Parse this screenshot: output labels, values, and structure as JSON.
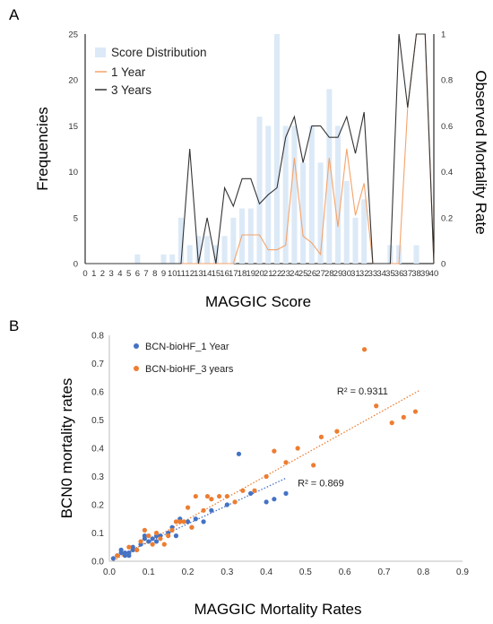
{
  "panels": {
    "a_label": "A",
    "b_label": "B"
  },
  "colors": {
    "bar": "#dce9f7",
    "one_year_line": "#f4a36a",
    "three_year_line": "#333333",
    "one_year_scatter": "#4472c4",
    "three_year_scatter": "#ed7d31"
  },
  "chart_data": [
    {
      "type": "bar+line",
      "xlabel": "MAGGIC Score",
      "ylabel": "Frequencies",
      "y2label": "Observed Mortality Rate",
      "ylim": [
        0,
        25
      ],
      "y2lim": [
        0,
        1
      ],
      "xlim": [
        0,
        40
      ],
      "x_ticks": [
        "0",
        "1",
        "2",
        "3",
        "4",
        "5",
        "6",
        "7",
        "8",
        "9",
        "10",
        "11",
        "12",
        "13",
        "14",
        "15",
        "16",
        "17",
        "18",
        "19",
        "20",
        "21",
        "22",
        "23",
        "24",
        "25",
        "26",
        "27",
        "28",
        "29",
        "30",
        "31",
        "32",
        "33",
        "34",
        "35",
        "36",
        "37",
        "38",
        "39",
        "40"
      ],
      "y_ticks": [
        "0",
        "5",
        "10",
        "15",
        "20",
        "25"
      ],
      "y2_ticks": [
        "0",
        "0.2",
        "0.4",
        "0.6",
        "0.8",
        "1"
      ],
      "legend": [
        "Score Distribution",
        "1 Year",
        "3 Years"
      ],
      "legend_position": "top-left",
      "frequencies": [
        0,
        0,
        0,
        0,
        0,
        0,
        1,
        0,
        0,
        1,
        1,
        5,
        2,
        3,
        3,
        2,
        3,
        5,
        6,
        6,
        16,
        15,
        25,
        15,
        15,
        11,
        15,
        11,
        19,
        15,
        9,
        5,
        7,
        0,
        0,
        2,
        2,
        0,
        2,
        0,
        0
      ],
      "mortality_1_year": [
        0,
        0,
        0,
        0,
        0,
        0,
        0,
        0,
        0,
        0,
        0,
        0,
        0,
        0,
        0,
        0,
        0,
        0,
        0.125,
        0.125,
        0.125,
        0.06,
        0.06,
        0.08,
        0.46,
        0.12,
        0.09,
        0.04,
        0.46,
        0.16,
        0.5,
        0.21,
        0.35,
        0,
        0,
        0,
        0,
        0.68,
        1,
        1,
        0
      ],
      "mortality_3_years": [
        0,
        0,
        0,
        0,
        0,
        0,
        0,
        0,
        0,
        0,
        0,
        0,
        0.5,
        0,
        0.2,
        0,
        0.33,
        0.25,
        0.37,
        0.37,
        0.26,
        0.3,
        0.33,
        0.55,
        0.64,
        0.44,
        0.6,
        0.6,
        0.55,
        0.55,
        0.64,
        0.48,
        0.66,
        0,
        0,
        0,
        1,
        0.68,
        1,
        1,
        0
      ]
    },
    {
      "type": "scatter",
      "xlabel": "MAGGIC Mortality Rates",
      "ylabel": "BCN0 mortality rates",
      "xlim": [
        0,
        0.9
      ],
      "ylim": [
        0,
        0.8
      ],
      "x_ticks": [
        "0.0",
        "0.1",
        "0.2",
        "0.3",
        "0.4",
        "0.5",
        "0.6",
        "0.7",
        "0.8",
        "0.9"
      ],
      "y_ticks": [
        "0.0",
        "0.1",
        "0.2",
        "0.3",
        "0.4",
        "0.5",
        "0.6",
        "0.7",
        "0.8"
      ],
      "legend_position": "top-left",
      "series": [
        {
          "name": "BCN-bioHF_1 Year",
          "trendline": {
            "slope": 0.647,
            "intercept": 0.003,
            "x_range": [
              0.01,
              0.45
            ]
          },
          "r2_label": "R² = 0.869",
          "points": [
            [
              0.01,
              0.01
            ],
            [
              0.02,
              0.02
            ],
            [
              0.03,
              0.03
            ],
            [
              0.03,
              0.04
            ],
            [
              0.04,
              0.02
            ],
            [
              0.04,
              0.03
            ],
            [
              0.05,
              0.03
            ],
            [
              0.05,
              0.02
            ],
            [
              0.06,
              0.04
            ],
            [
              0.06,
              0.05
            ],
            [
              0.07,
              0.04
            ],
            [
              0.08,
              0.06
            ],
            [
              0.09,
              0.08
            ],
            [
              0.09,
              0.09
            ],
            [
              0.1,
              0.07
            ],
            [
              0.11,
              0.08
            ],
            [
              0.12,
              0.09
            ],
            [
              0.12,
              0.07
            ],
            [
              0.13,
              0.09
            ],
            [
              0.15,
              0.1
            ],
            [
              0.16,
              0.12
            ],
            [
              0.17,
              0.09
            ],
            [
              0.18,
              0.15
            ],
            [
              0.2,
              0.14
            ],
            [
              0.21,
              0.12
            ],
            [
              0.22,
              0.15
            ],
            [
              0.24,
              0.14
            ],
            [
              0.26,
              0.18
            ],
            [
              0.3,
              0.2
            ],
            [
              0.33,
              0.38
            ],
            [
              0.36,
              0.24
            ],
            [
              0.4,
              0.21
            ],
            [
              0.42,
              0.22
            ],
            [
              0.45,
              0.24
            ]
          ]
        },
        {
          "name": "BCN-bioHF_3 years",
          "trendline": {
            "slope": 0.773,
            "intercept": -0.006,
            "x_range": [
              0.01,
              0.79
            ]
          },
          "r2_label": "R² = 0.9311",
          "points": [
            [
              0.02,
              0.02
            ],
            [
              0.05,
              0.05
            ],
            [
              0.07,
              0.04
            ],
            [
              0.08,
              0.07
            ],
            [
              0.09,
              0.11
            ],
            [
              0.1,
              0.09
            ],
            [
              0.11,
              0.06
            ],
            [
              0.12,
              0.1
            ],
            [
              0.13,
              0.08
            ],
            [
              0.14,
              0.06
            ],
            [
              0.15,
              0.09
            ],
            [
              0.16,
              0.11
            ],
            [
              0.17,
              0.14
            ],
            [
              0.18,
              0.14
            ],
            [
              0.19,
              0.14
            ],
            [
              0.2,
              0.19
            ],
            [
              0.21,
              0.12
            ],
            [
              0.22,
              0.23
            ],
            [
              0.24,
              0.18
            ],
            [
              0.25,
              0.23
            ],
            [
              0.26,
              0.22
            ],
            [
              0.28,
              0.23
            ],
            [
              0.3,
              0.23
            ],
            [
              0.32,
              0.21
            ],
            [
              0.34,
              0.25
            ],
            [
              0.37,
              0.25
            ],
            [
              0.4,
              0.3
            ],
            [
              0.42,
              0.39
            ],
            [
              0.45,
              0.35
            ],
            [
              0.48,
              0.4
            ],
            [
              0.52,
              0.34
            ],
            [
              0.54,
              0.44
            ],
            [
              0.58,
              0.46
            ],
            [
              0.65,
              0.75
            ],
            [
              0.68,
              0.55
            ],
            [
              0.72,
              0.49
            ],
            [
              0.75,
              0.51
            ],
            [
              0.78,
              0.53
            ]
          ]
        }
      ]
    }
  ]
}
